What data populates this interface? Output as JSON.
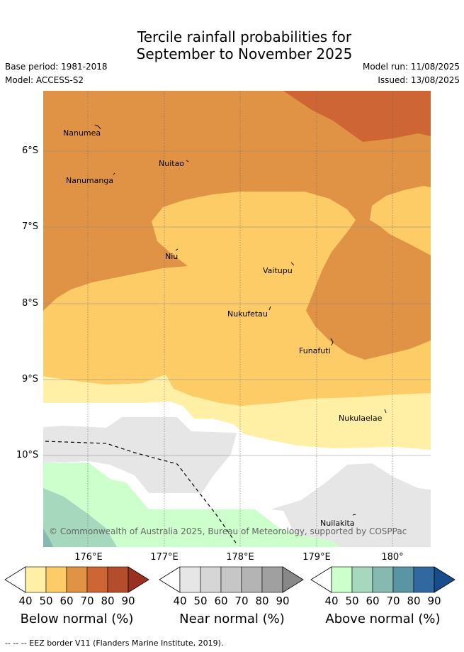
{
  "title_line1": "Tercile rainfall probabilities for",
  "title_line2": "September to November 2025",
  "base_period": "Base period: 1981-2018",
  "model": "Model: ACCESS-S2",
  "model_run": "Model run: 11/08/2025",
  "issued": "Issued: 13/08/2025",
  "lat_labels": [
    "6°S",
    "7°S",
    "8°S",
    "9°S",
    "10°S"
  ],
  "lon_labels": [
    "176°E",
    "177°E",
    "178°E",
    "179°E",
    "180°"
  ],
  "places": [
    {
      "name": "Nanumea"
    },
    {
      "name": "Nuitao"
    },
    {
      "name": "Nanumanga"
    },
    {
      "name": "Niu"
    },
    {
      "name": "Vaitupu"
    },
    {
      "name": "Nukufetau"
    },
    {
      "name": "Funafuti"
    },
    {
      "name": "Nukulaelae"
    },
    {
      "name": "Nuilakita"
    }
  ],
  "copyright": "© Commonwealth of Australia 2025, Bureau of Meteorology, supported by COSPPac",
  "colorbars": [
    {
      "title": "Below normal (%)",
      "ticks": [
        "40",
        "50",
        "60",
        "70",
        "80",
        "90"
      ],
      "colors": [
        "#fff0a6",
        "#fdcc66",
        "#e09344",
        "#cd6634",
        "#b44d2c",
        "#9a3120"
      ]
    },
    {
      "title": "Near normal (%)",
      "ticks": [
        "40",
        "50",
        "60",
        "70",
        "80",
        "90"
      ],
      "colors": [
        "#e6e6e6",
        "#d6d6d6",
        "#c6c6c6",
        "#b4b4b4",
        "#a0a0a0",
        "#888888"
      ]
    },
    {
      "title": "Above normal (%)",
      "ticks": [
        "40",
        "50",
        "60",
        "70",
        "80",
        "90"
      ],
      "colors": [
        "#ccffcc",
        "#a5d8bd",
        "#86b9b0",
        "#5a95a5",
        "#30689f",
        "#174d8a"
      ]
    }
  ],
  "footer": "-- -- -- EEZ border V11 (Flanders Marine Institute, 2019)."
}
